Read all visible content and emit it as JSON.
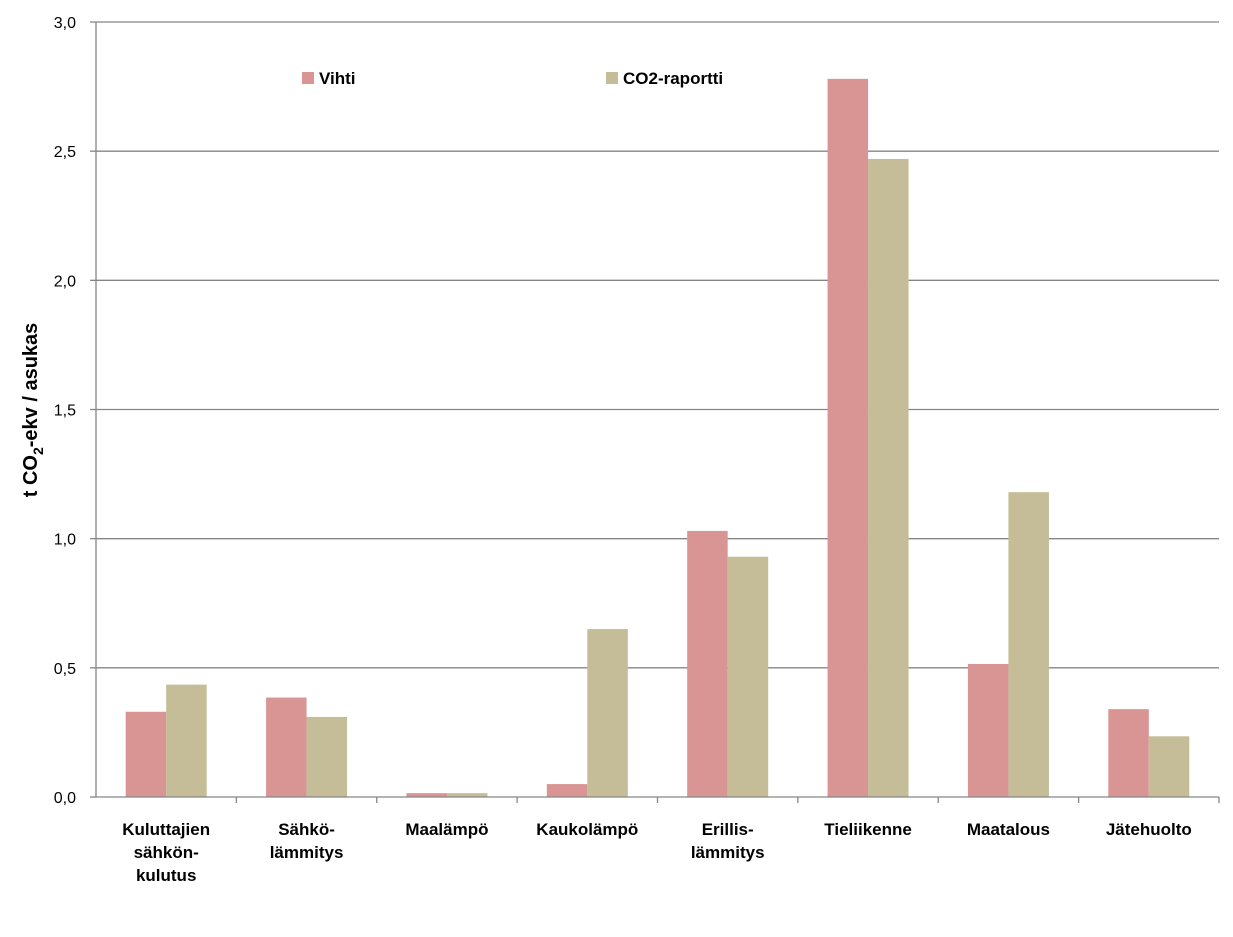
{
  "chart_data": {
    "type": "bar",
    "categories": [
      [
        "Kuluttajien",
        "sähkön-",
        "kulutus"
      ],
      [
        "Sähkö-",
        "lämmitys"
      ],
      [
        "Maalämpö"
      ],
      [
        "Kaukolämpö"
      ],
      [
        "Erillis-",
        "lämmitys"
      ],
      [
        "Tieliikenne"
      ],
      [
        "Maatalous"
      ],
      [
        "Jätehuolto"
      ]
    ],
    "series": [
      {
        "name": "Vihti",
        "color": "#d99594",
        "values": [
          0.33,
          0.385,
          0.015,
          0.05,
          1.03,
          2.78,
          0.515,
          0.34
        ]
      },
      {
        "name": "CO2-raportti",
        "color": "#c4bd97",
        "values": [
          0.435,
          0.31,
          0.015,
          0.65,
          0.93,
          2.47,
          1.18,
          0.235
        ]
      }
    ],
    "ylabel": {
      "prefix": "t CO",
      "subscript": "2",
      "suffix": "-ekv / asukas"
    },
    "ylim": [
      0,
      3.0
    ],
    "yticks": [
      "0,0",
      "0,5",
      "1,0",
      "1,5",
      "2,0",
      "2,5",
      "3,0"
    ],
    "grid": true,
    "legend_position": "top"
  }
}
